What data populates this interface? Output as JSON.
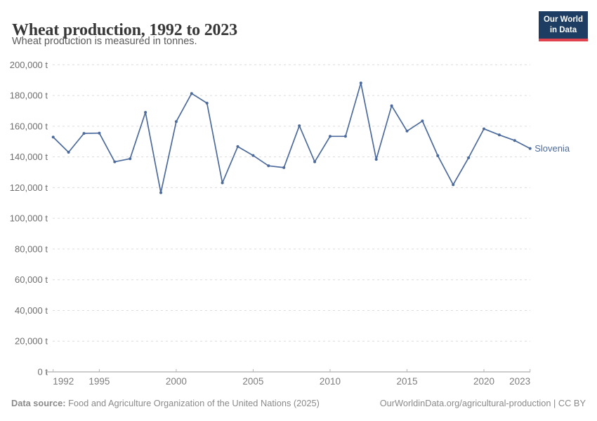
{
  "header": {
    "title": "Wheat production, 1992 to 2023",
    "subtitle": "Wheat production is measured in tonnes."
  },
  "logo": {
    "line1": "Our World",
    "line2": "in Data"
  },
  "chart_data": {
    "type": "line",
    "title": "Wheat production, 1992 to 2023",
    "subtitle": "Wheat production is measured in tonnes.",
    "xlabel": "",
    "ylabel": "",
    "x": [
      1992,
      1993,
      1994,
      1995,
      1996,
      1997,
      1998,
      1999,
      2000,
      2001,
      2002,
      2003,
      2004,
      2005,
      2006,
      2007,
      2008,
      2009,
      2010,
      2011,
      2012,
      2013,
      2014,
      2015,
      2016,
      2017,
      2018,
      2019,
      2020,
      2021,
      2022,
      2023
    ],
    "series": [
      {
        "name": "Slovenia",
        "color": "#4c6a9c",
        "values": [
          152900,
          143000,
          155300,
          155500,
          136800,
          138800,
          169000,
          116700,
          163000,
          181300,
          175000,
          123100,
          146700,
          140900,
          134200,
          133000,
          160300,
          136800,
          153400,
          153400,
          188100,
          138400,
          173300,
          156800,
          163400,
          140800,
          121900,
          139400,
          158300,
          154300,
          150700,
          145500
        ]
      }
    ],
    "ylim": [
      0,
      200000
    ],
    "ytick_interval": 20000,
    "ytick_suffix": " t",
    "xticks": [
      1992,
      1995,
      2000,
      2005,
      2010,
      2015,
      2020,
      2023
    ],
    "grid": true,
    "legend_position": "end-of-line",
    "entity_label": "Slovenia"
  },
  "footer": {
    "source_label": "Data source:",
    "source_text": "Food and Agriculture Organization of the United Nations (2025)",
    "link_text": "OurWorldinData.org/agricultural-production | CC BY"
  },
  "colors": {
    "line": "#4c6a9c",
    "logo_navy": "#1d3d63",
    "logo_red": "#e0434e",
    "gridline": "#dcdcdc",
    "axis": "#999999"
  }
}
